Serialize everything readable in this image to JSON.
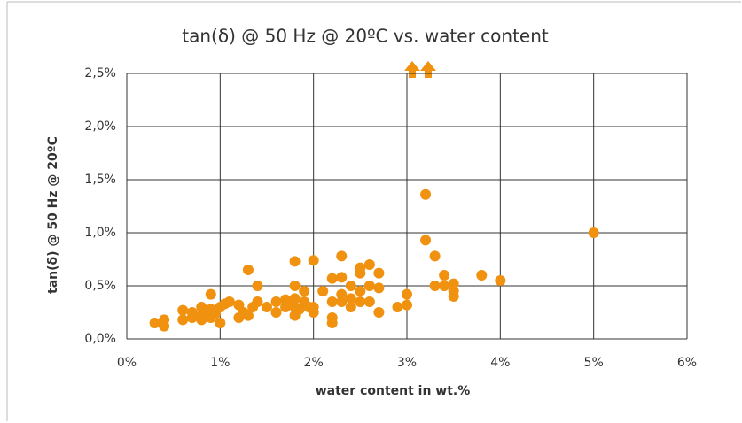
{
  "chart_data": {
    "type": "scatter",
    "title": "tan(δ) @ 50 Hz @ 20ºC vs. water content",
    "xlabel": "water content in wt.%",
    "ylabel": "tan(δ) @ 50 Hz @ 20ºC",
    "color": "#f0910f",
    "x": [
      0.3,
      0.4,
      0.4,
      0.6,
      0.6,
      0.7,
      0.7,
      0.8,
      0.8,
      0.8,
      0.85,
      0.9,
      0.9,
      0.9,
      0.95,
      1.0,
      1.0,
      1.05,
      1.1,
      1.2,
      1.2,
      1.25,
      1.3,
      1.3,
      1.35,
      1.4,
      1.4,
      1.5,
      1.6,
      1.6,
      1.7,
      1.7,
      1.75,
      1.8,
      1.8,
      1.8,
      1.8,
      1.8,
      1.85,
      1.9,
      1.9,
      1.95,
      2.0,
      2.0,
      2.0,
      2.1,
      2.2,
      2.2,
      2.2,
      2.2,
      2.3,
      2.3,
      2.3,
      2.3,
      2.4,
      2.4,
      2.4,
      2.5,
      2.5,
      2.5,
      2.5,
      2.6,
      2.6,
      2.6,
      2.7,
      2.7,
      2.7,
      2.9,
      3.0,
      3.0,
      3.2,
      3.2,
      3.3,
      3.3,
      3.4,
      3.4,
      3.5,
      3.5,
      3.5,
      3.8,
      4.0,
      5.0
    ],
    "values": [
      0.15,
      0.12,
      0.18,
      0.18,
      0.27,
      0.2,
      0.25,
      0.18,
      0.22,
      0.3,
      0.26,
      0.2,
      0.28,
      0.42,
      0.24,
      0.15,
      0.3,
      0.33,
      0.35,
      0.2,
      0.32,
      0.25,
      0.22,
      0.65,
      0.3,
      0.35,
      0.5,
      0.3,
      0.25,
      0.35,
      0.3,
      0.37,
      0.33,
      0.22,
      0.3,
      0.38,
      0.5,
      0.73,
      0.28,
      0.35,
      0.45,
      0.3,
      0.25,
      0.3,
      0.74,
      0.45,
      0.15,
      0.2,
      0.35,
      0.57,
      0.35,
      0.42,
      0.58,
      0.78,
      0.3,
      0.38,
      0.5,
      0.35,
      0.45,
      0.62,
      0.67,
      0.35,
      0.5,
      0.7,
      0.25,
      0.48,
      0.62,
      0.3,
      0.32,
      0.42,
      0.93,
      1.36,
      0.5,
      0.78,
      0.5,
      0.6,
      0.4,
      0.45,
      0.52,
      0.6,
      0.55,
      1.0
    ],
    "xlim": [
      0,
      6
    ],
    "xticks": [
      {
        "value": 0,
        "label": "0%"
      },
      {
        "value": 1,
        "label": "1%"
      },
      {
        "value": 2,
        "label": "2%"
      },
      {
        "value": 3,
        "label": "3%"
      },
      {
        "value": 4,
        "label": "4%"
      },
      {
        "value": 5,
        "label": "5%"
      },
      {
        "value": 6,
        "label": "6%"
      }
    ],
    "ylim": [
      0,
      2.5
    ],
    "yticks": [
      {
        "value": 0,
        "label": "0,0%"
      },
      {
        "value": 0.5,
        "label": "0,5%"
      },
      {
        "value": 1,
        "label": "1,0%"
      },
      {
        "value": 1.5,
        "label": "1,5%"
      },
      {
        "value": 2,
        "label": "2,0%"
      },
      {
        "value": 2.5,
        "label": "2,5%"
      }
    ],
    "grid": true
  }
}
